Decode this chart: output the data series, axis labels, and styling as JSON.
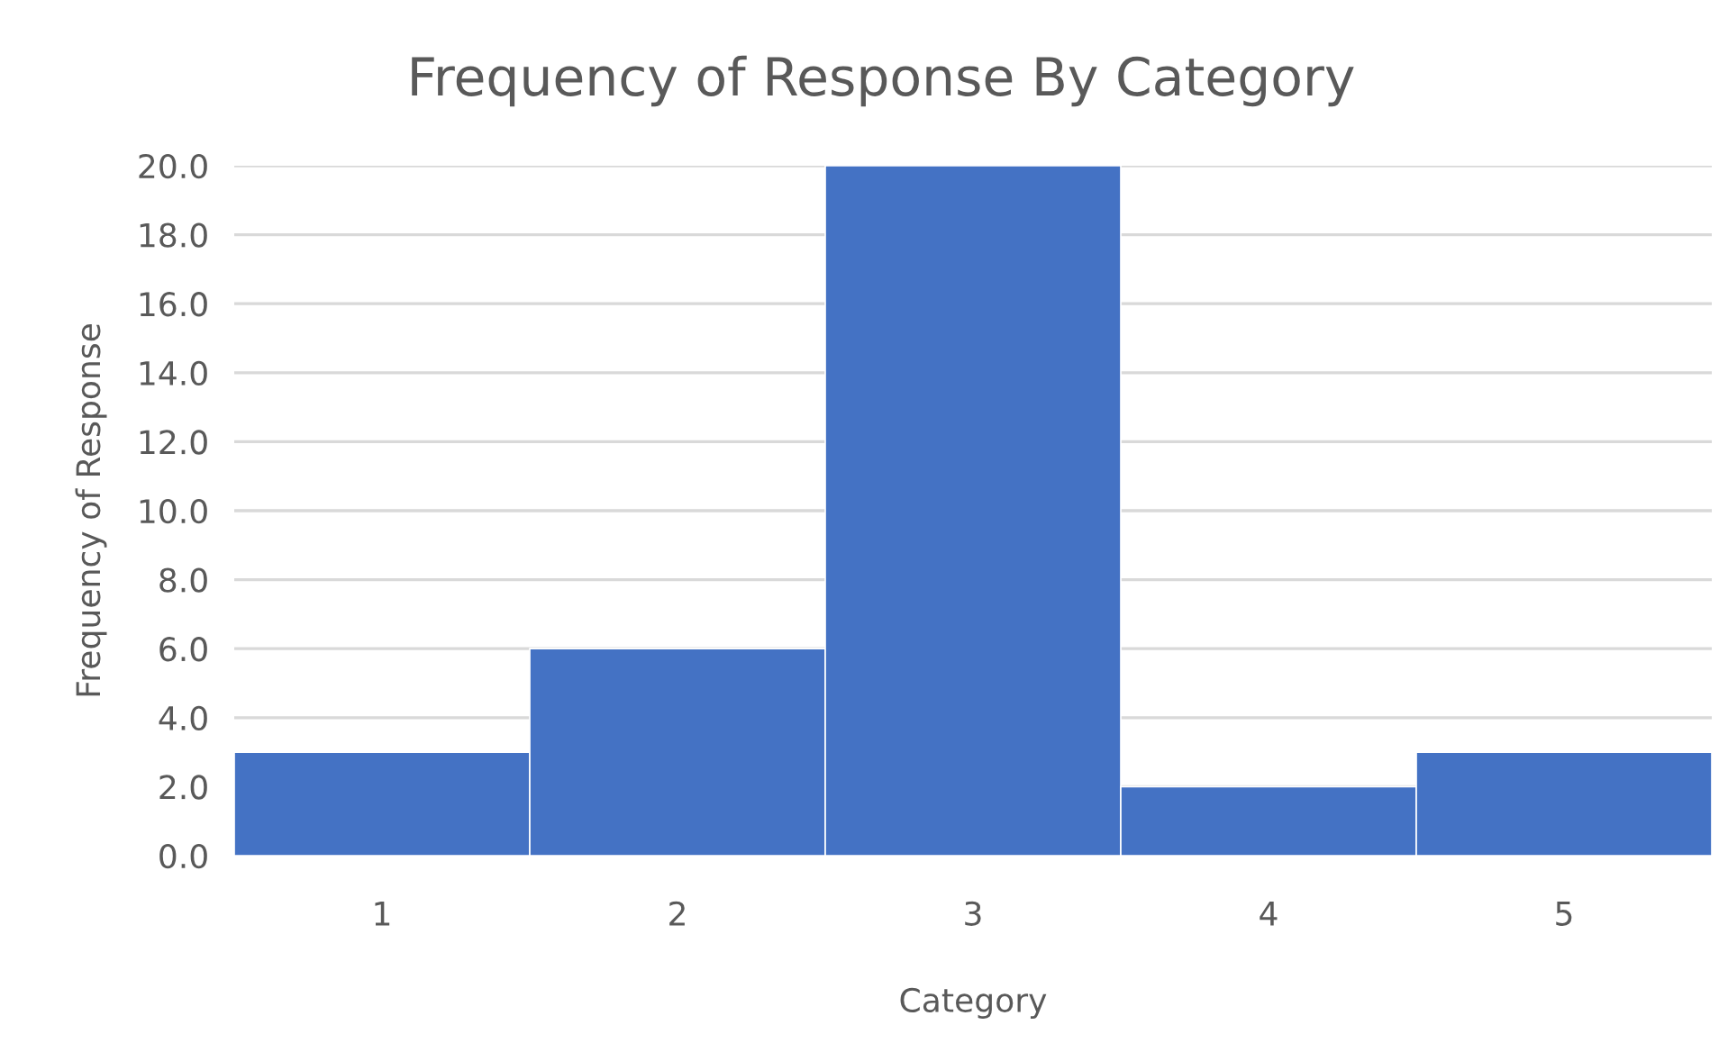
{
  "chart_data": {
    "type": "bar",
    "title": "Frequency of Response By Category",
    "xlabel": "Category",
    "ylabel": "Frequency of Response",
    "categories": [
      "1",
      "2",
      "3",
      "4",
      "5"
    ],
    "values": [
      3,
      6,
      20,
      2,
      3
    ],
    "color": "#4472c4",
    "ylim": [
      0,
      20
    ],
    "yticks": [
      {
        "value": 0,
        "label": "0.0"
      },
      {
        "value": 2,
        "label": "2.0"
      },
      {
        "value": 4,
        "label": "4.0"
      },
      {
        "value": 6,
        "label": "6.0"
      },
      {
        "value": 8,
        "label": "8.0"
      },
      {
        "value": 10,
        "label": "10.0"
      },
      {
        "value": 12,
        "label": "12.0"
      },
      {
        "value": 14,
        "label": "14.0"
      },
      {
        "value": 16,
        "label": "16.0"
      },
      {
        "value": 18,
        "label": "18.0"
      },
      {
        "value": 20,
        "label": "20.0"
      }
    ],
    "grid": "y"
  }
}
